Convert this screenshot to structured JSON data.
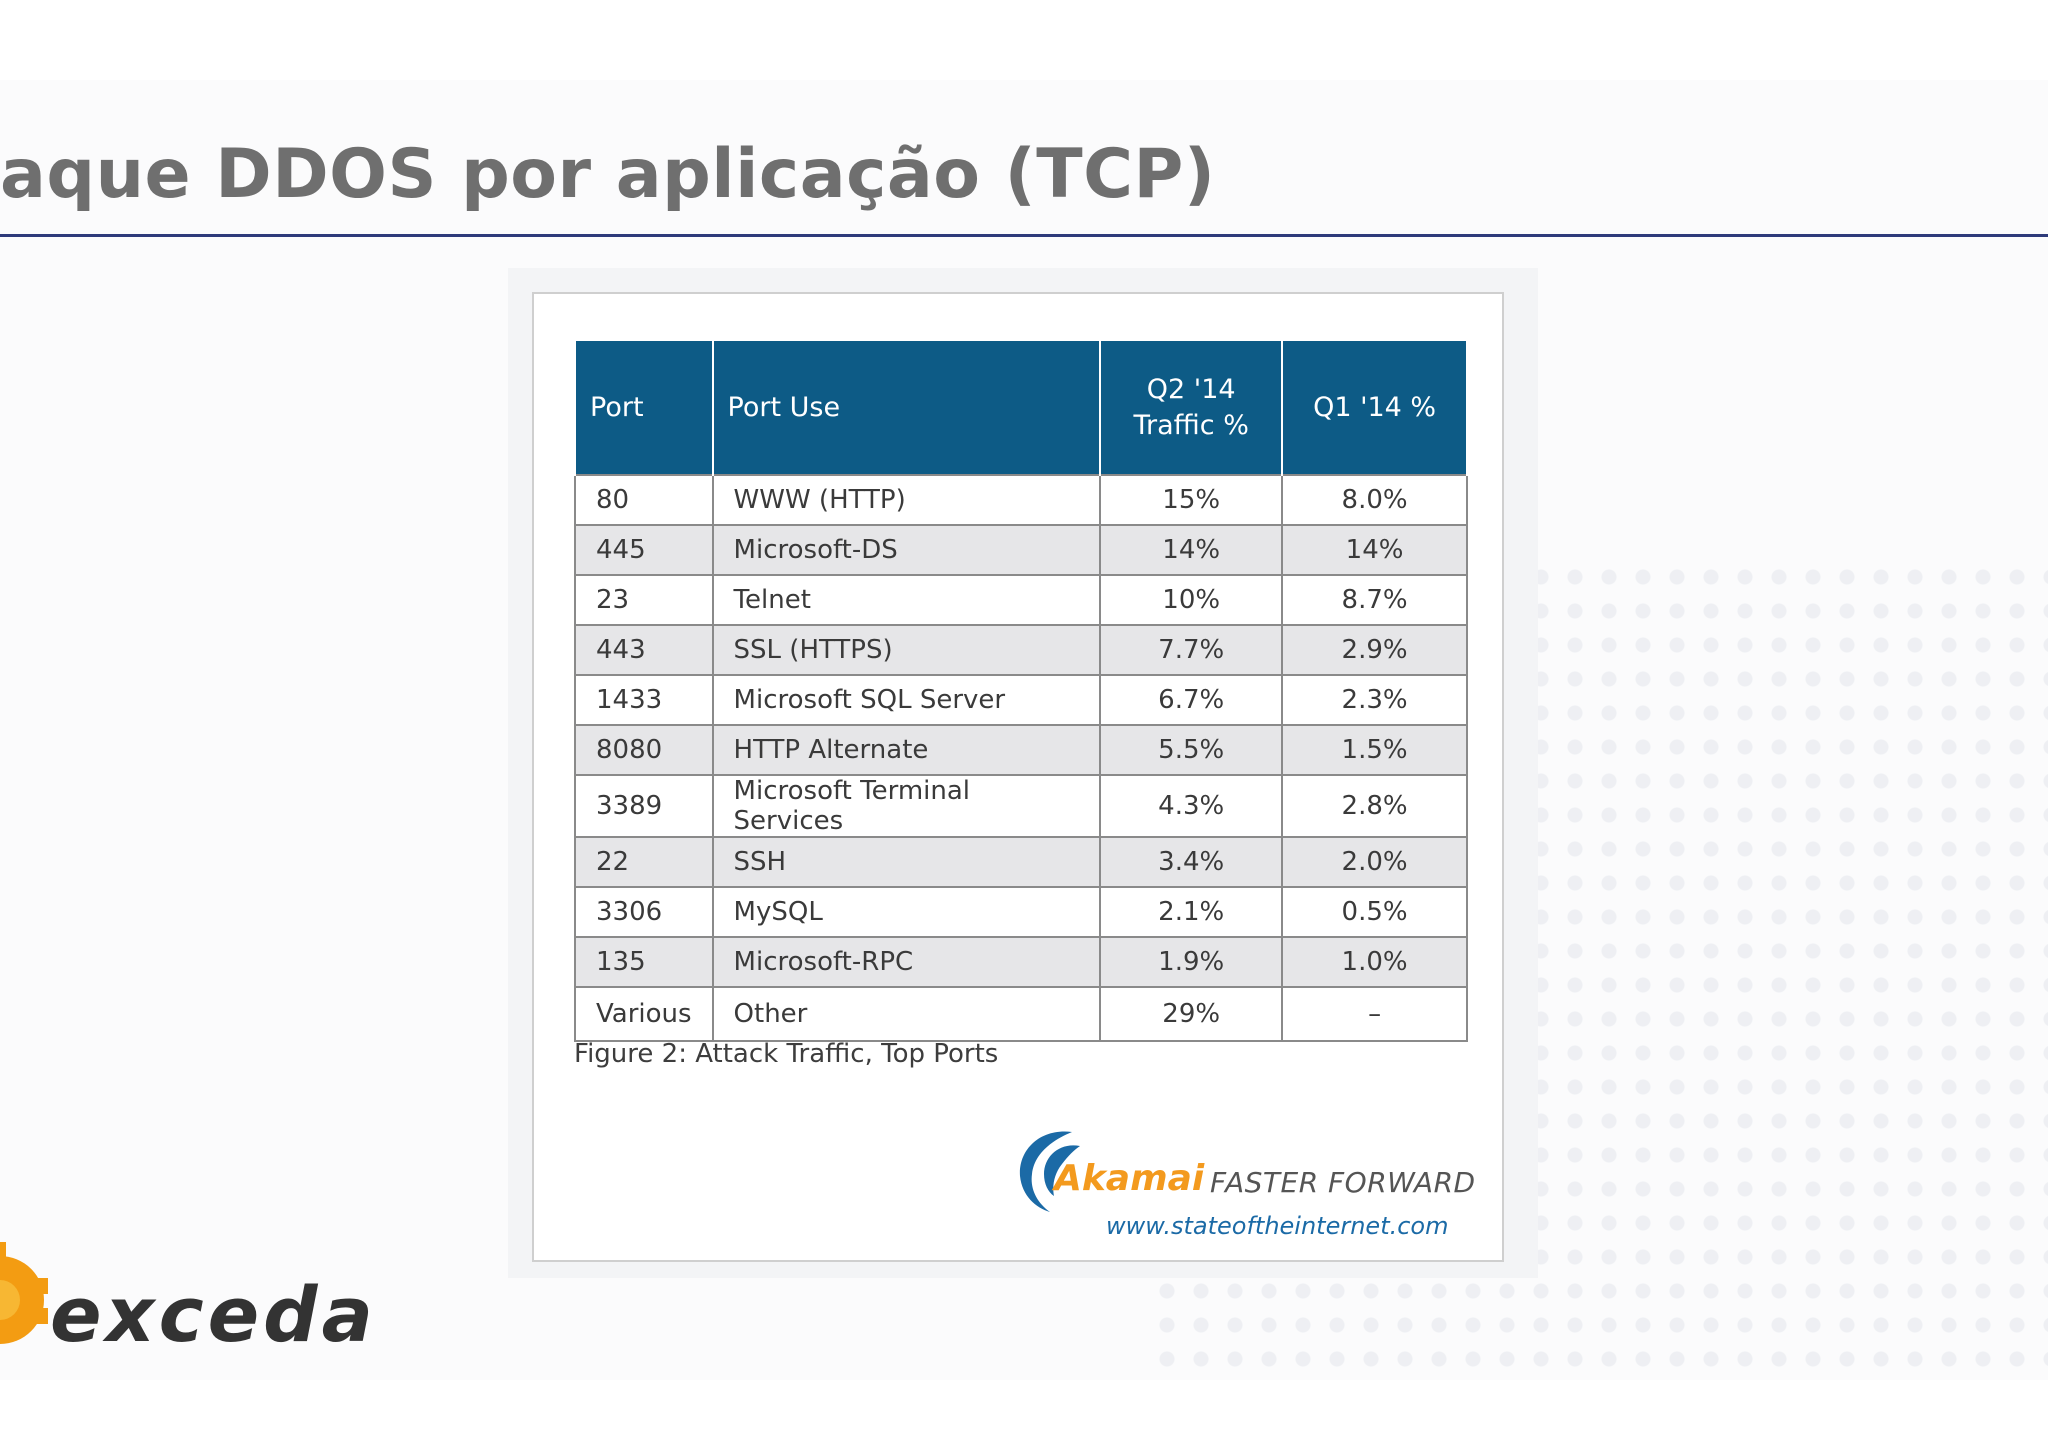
{
  "slide": {
    "title": "aque DDOS por aplicação (TCP)"
  },
  "table": {
    "headers": {
      "port": "Port",
      "port_use": "Port Use",
      "q2_line1": "Q2 '14",
      "q2_line2": "Traffic %",
      "q1": "Q1 '14 %"
    },
    "rows": [
      {
        "port": "80",
        "use": "WWW (HTTP)",
        "q2": "15%",
        "q1": "8.0%"
      },
      {
        "port": "445",
        "use": "Microsoft-DS",
        "q2": "14%",
        "q1": "14%"
      },
      {
        "port": "23",
        "use": "Telnet",
        "q2": "10%",
        "q1": "8.7%"
      },
      {
        "port": "443",
        "use": "SSL (HTTPS)",
        "q2": "7.7%",
        "q1": "2.9%"
      },
      {
        "port": "1433",
        "use": "Microsoft SQL Server",
        "q2": "6.7%",
        "q1": "2.3%"
      },
      {
        "port": "8080",
        "use": "HTTP Alternate",
        "q2": "5.5%",
        "q1": "1.5%"
      },
      {
        "port": "3389",
        "use": "Microsoft Terminal Services",
        "q2": "4.3%",
        "q1": "2.8%"
      },
      {
        "port": "22",
        "use": "SSH",
        "q2": "3.4%",
        "q1": "2.0%"
      },
      {
        "port": "3306",
        "use": "MySQL",
        "q2": "2.1%",
        "q1": "0.5%"
      },
      {
        "port": "135",
        "use": "Microsoft-RPC",
        "q2": "1.9%",
        "q1": "1.0%"
      },
      {
        "port": "Various",
        "use": "Other",
        "q2": "29%",
        "q1": "–"
      }
    ],
    "caption": "Figure 2: Attack Traffic, Top Ports"
  },
  "akamai": {
    "name": "Akamai",
    "tagline": "FASTER FORWARD",
    "url": "www.stateoftheinternet.com",
    "orange": "#f39a1e",
    "blue": "#1b6aa6"
  },
  "brand": {
    "name": "exceda",
    "logo_color": "#f39c12"
  },
  "colors": {
    "header_bg": "#0d5b86",
    "title_text": "#6f6f6f",
    "rule": "#2e3a7a"
  }
}
